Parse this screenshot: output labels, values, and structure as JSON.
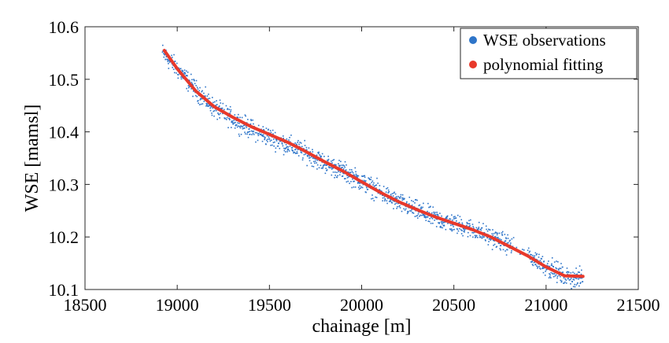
{
  "chart_data": {
    "type": "scatter",
    "title": "",
    "xlabel": "chainage [m]",
    "ylabel": "WSE [mamsl]",
    "xlim": [
      18500,
      21500
    ],
    "ylim": [
      10.1,
      10.6
    ],
    "xticks": [
      18500,
      19000,
      19500,
      20000,
      20500,
      21000,
      21500
    ],
    "yticks": [
      10.1,
      10.2,
      10.3,
      10.4,
      10.5,
      10.6
    ],
    "xtick_labels": [
      "18500",
      "19000",
      "19500",
      "20000",
      "20500",
      "21000",
      "21500"
    ],
    "ytick_labels": [
      "10.1",
      "10.2",
      "10.3",
      "10.4",
      "10.5",
      "10.6"
    ],
    "grid": false,
    "legend_position": "top-right",
    "series": [
      {
        "name": "WSE observations",
        "kind": "scatter",
        "color": "#2e75c9",
        "x_range": [
          18920,
          21200
        ],
        "trend": {
          "x": [
            18920,
            19000,
            19100,
            19200,
            19300,
            19400,
            19500,
            19600,
            19700,
            19800,
            19900,
            20000,
            20100,
            20200,
            20300,
            20400,
            20500,
            20600,
            20700,
            20800,
            20900,
            21000,
            21100,
            21200
          ],
          "y": [
            10.55,
            10.52,
            10.48,
            10.445,
            10.425,
            10.405,
            10.39,
            10.375,
            10.36,
            10.34,
            10.325,
            10.305,
            10.285,
            10.265,
            10.25,
            10.235,
            10.225,
            10.215,
            10.2,
            10.185,
            10.165,
            10.145,
            10.125,
            10.12
          ]
        },
        "spread": 0.018
      },
      {
        "name": "polynomial fitting",
        "kind": "line",
        "color": "#e8392b",
        "x": [
          18930,
          19000,
          19100,
          19200,
          19300,
          19400,
          19500,
          19600,
          19700,
          19800,
          19900,
          20000,
          20100,
          20200,
          20300,
          20400,
          20500,
          20600,
          20700,
          20800,
          20900,
          21000,
          21100,
          21200
        ],
        "y": [
          10.555,
          10.52,
          10.478,
          10.448,
          10.428,
          10.41,
          10.395,
          10.38,
          10.362,
          10.343,
          10.325,
          10.305,
          10.285,
          10.267,
          10.252,
          10.238,
          10.226,
          10.214,
          10.2,
          10.182,
          10.164,
          10.143,
          10.126,
          10.125
        ]
      }
    ]
  }
}
